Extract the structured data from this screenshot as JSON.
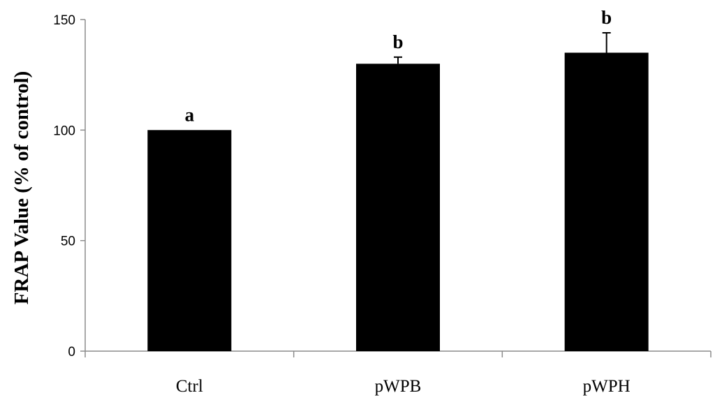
{
  "chart_data": {
    "type": "bar",
    "title": "",
    "xlabel": "",
    "ylabel": "FRAP Value (% of control)",
    "ylim": [
      0,
      150
    ],
    "yticks": [
      0,
      50,
      100,
      150
    ],
    "categories": [
      "Ctrl",
      "pWPB",
      "pWPH"
    ],
    "values": [
      100,
      130,
      135
    ],
    "error": [
      0,
      3,
      9
    ],
    "significance_letters": [
      "a",
      "b",
      "b"
    ],
    "bar_color": "#000000",
    "grid": false,
    "legend": "none"
  }
}
